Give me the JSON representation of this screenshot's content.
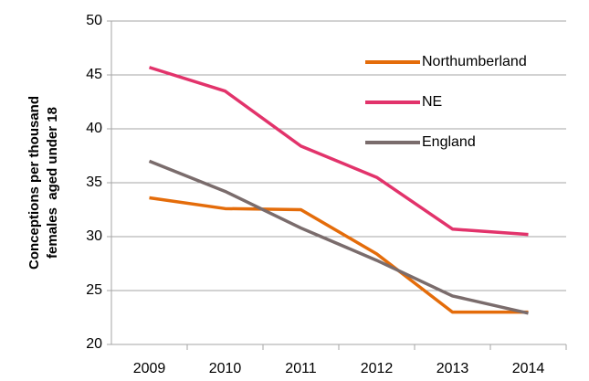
{
  "chart_data": {
    "type": "line",
    "ylabel": [
      "Conceptions per thousand",
      "females  aged under 18"
    ],
    "categories": [
      "2009",
      "2010",
      "2011",
      "2012",
      "2013",
      "2014"
    ],
    "series": [
      {
        "name": "Northumberland",
        "color": "#e46c0a",
        "values": [
          33.6,
          32.6,
          32.5,
          28.4,
          23.0,
          23.0
        ]
      },
      {
        "name": "NE",
        "color": "#e2336b",
        "values": [
          45.7,
          43.5,
          38.4,
          35.5,
          30.7,
          30.2
        ]
      },
      {
        "name": "England",
        "color": "#7a6c6c",
        "values": [
          37.0,
          34.2,
          30.8,
          27.8,
          24.5,
          22.9
        ]
      }
    ],
    "ylim": [
      20,
      50
    ],
    "yticks": [
      20,
      25,
      30,
      35,
      40,
      45,
      50
    ],
    "grid": true,
    "legend": "upper right"
  }
}
